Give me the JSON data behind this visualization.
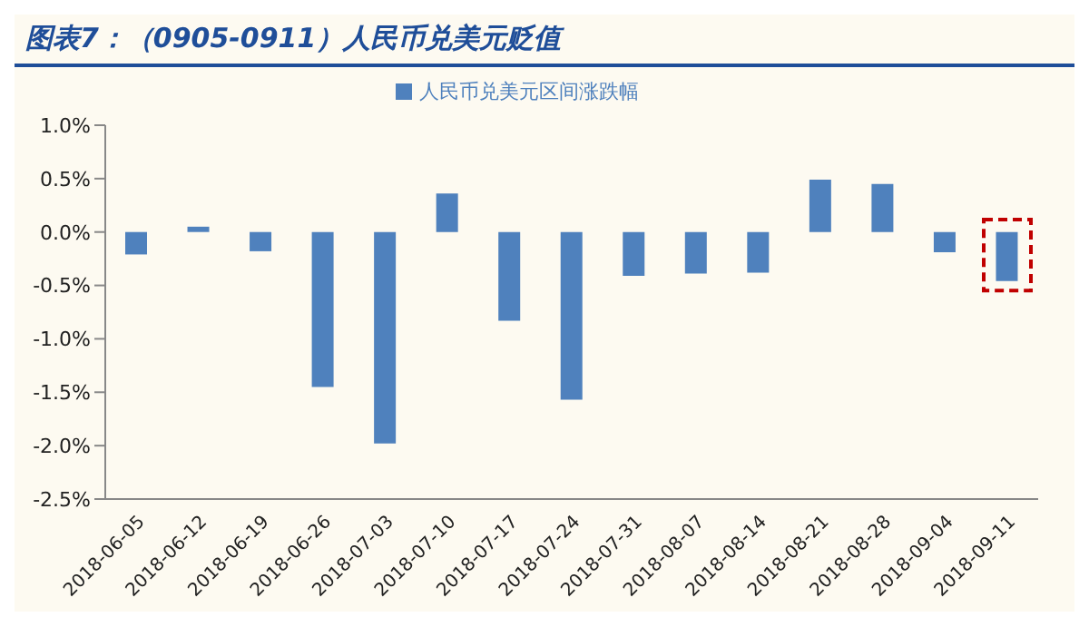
{
  "chart_data": {
    "type": "bar",
    "title": "图表7：（0905-0911）人民币兑美元贬值",
    "categories": [
      "2018-06-05",
      "2018-06-12",
      "2018-06-19",
      "2018-06-26",
      "2018-07-03",
      "2018-07-10",
      "2018-07-17",
      "2018-07-24",
      "2018-07-31",
      "2018-08-07",
      "2018-08-14",
      "2018-08-21",
      "2018-08-28",
      "2018-09-04",
      "2018-09-11"
    ],
    "series": [
      {
        "name": "人民币兑美元区间涨跌幅",
        "color": "#4f81bd",
        "values": [
          -0.21,
          0.05,
          -0.18,
          -1.45,
          -1.98,
          0.36,
          -0.83,
          -1.57,
          -0.41,
          -0.39,
          -0.38,
          0.49,
          0.45,
          -0.19,
          -0.46
        ]
      }
    ],
    "ylim": [
      -2.5,
      1.0
    ],
    "yticks": [
      {
        "value": -2.5,
        "label": "-2.5%"
      },
      {
        "value": -2,
        "label": "-2.0%"
      },
      {
        "value": -1.5,
        "label": "-1.5%"
      },
      {
        "value": -1,
        "label": "-1.0%"
      },
      {
        "value": -0.5,
        "label": "-0.5%"
      },
      {
        "value": 0,
        "label": "0.0%"
      },
      {
        "value": 0.5,
        "label": "0.5%"
      },
      {
        "value": 1,
        "label": "1.0%"
      }
    ],
    "grid": false,
    "legend": "top"
  }
}
